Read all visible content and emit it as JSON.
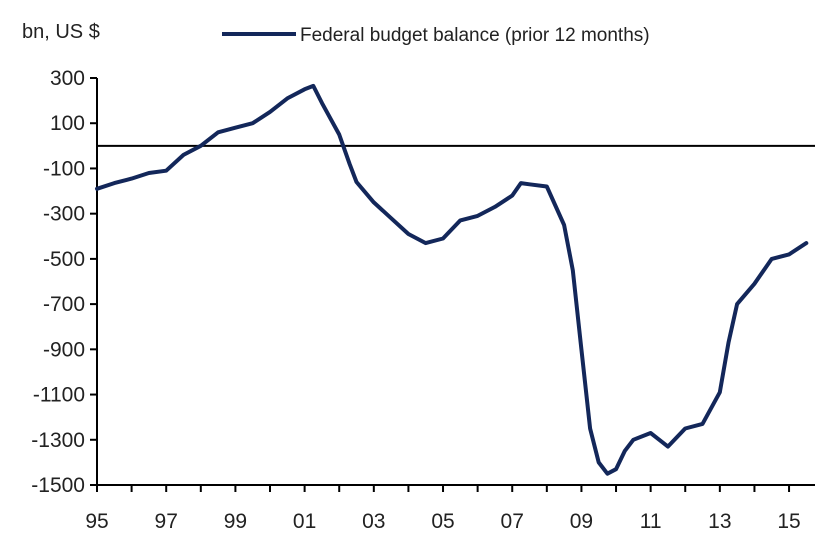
{
  "colors": {
    "series": "#13275a",
    "axis": "#000000",
    "text": "#222222",
    "background": "#ffffff"
  },
  "chart_data": {
    "type": "line",
    "title": "",
    "ylabel": "bn, US $",
    "xlabel": "",
    "xlim": [
      1995,
      2015.75
    ],
    "ylim": [
      -1500,
      300
    ],
    "y_ticks": [
      300,
      100,
      -100,
      -300,
      -500,
      -700,
      -900,
      -1100,
      -1300,
      -1500
    ],
    "x_ticks": [
      {
        "value": 1995,
        "label": "95"
      },
      {
        "value": 1997,
        "label": "97"
      },
      {
        "value": 1999,
        "label": "99"
      },
      {
        "value": 2001,
        "label": "01"
      },
      {
        "value": 2003,
        "label": "03"
      },
      {
        "value": 2005,
        "label": "05"
      },
      {
        "value": 2007,
        "label": "07"
      },
      {
        "value": 2009,
        "label": "09"
      },
      {
        "value": 2011,
        "label": "11"
      },
      {
        "value": 2013,
        "label": "13"
      },
      {
        "value": 2015,
        "label": "15"
      }
    ],
    "zero_line": 0,
    "grid": false,
    "legend_position": "top",
    "series": [
      {
        "name": "Federal budget balance (prior  12 months)",
        "color": "#13275a",
        "x": [
          1995.0,
          1995.5,
          1996.0,
          1996.5,
          1997.0,
          1997.5,
          1998.0,
          1998.5,
          1999.0,
          1999.5,
          2000.0,
          2000.5,
          2001.0,
          2001.25,
          2001.5,
          2002.0,
          2002.3,
          2002.5,
          2003.0,
          2003.5,
          2004.0,
          2004.5,
          2005.0,
          2005.5,
          2006.0,
          2006.5,
          2007.0,
          2007.25,
          2007.5,
          2008.0,
          2008.5,
          2008.75,
          2009.0,
          2009.25,
          2009.5,
          2009.75,
          2010.0,
          2010.25,
          2010.5,
          2011.0,
          2011.25,
          2011.5,
          2012.0,
          2012.5,
          2013.0,
          2013.25,
          2013.5,
          2014.0,
          2014.5,
          2015.0,
          2015.5
        ],
        "y": [
          -190,
          -165,
          -145,
          -120,
          -110,
          -40,
          0,
          60,
          80,
          100,
          150,
          210,
          250,
          265,
          190,
          50,
          -80,
          -160,
          -250,
          -320,
          -390,
          -430,
          -410,
          -330,
          -310,
          -270,
          -220,
          -165,
          -170,
          -180,
          -350,
          -550,
          -900,
          -1250,
          -1400,
          -1450,
          -1430,
          -1350,
          -1300,
          -1270,
          -1300,
          -1330,
          -1250,
          -1230,
          -1090,
          -870,
          -700,
          -610,
          -500,
          -480,
          -430
        ]
      }
    ]
  }
}
